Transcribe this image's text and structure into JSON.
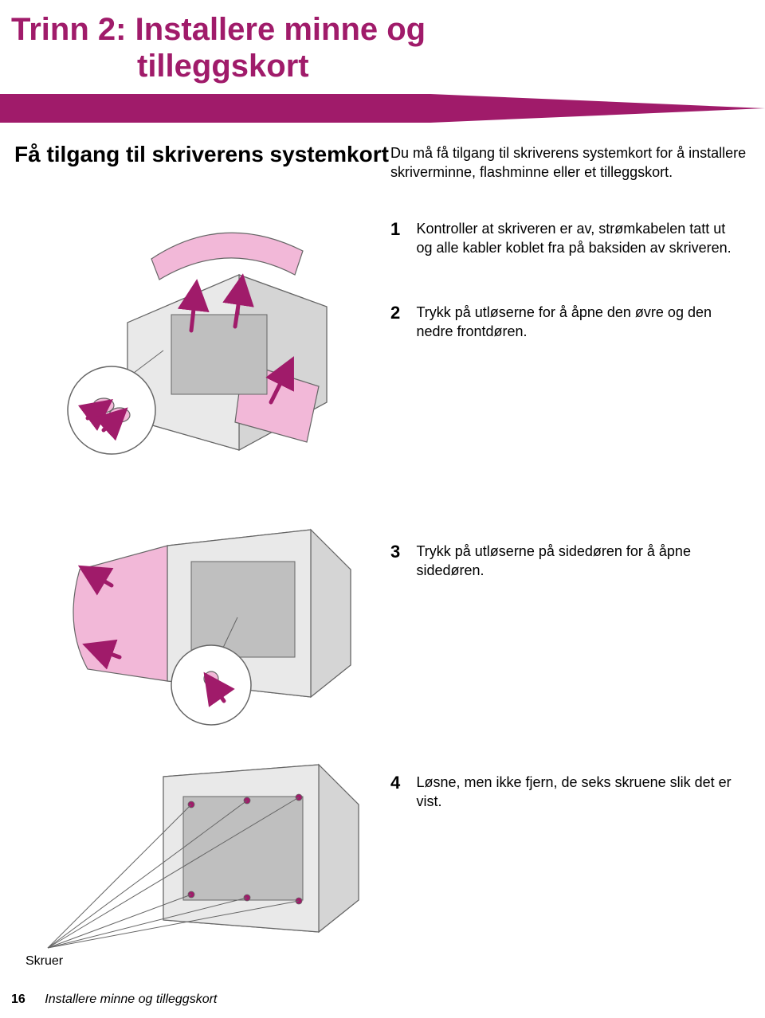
{
  "colors": {
    "heading": "#a01b6a",
    "banner_fill": "#a01b6a",
    "text": "#000000",
    "illus_stroke": "#666666",
    "illus_light_fill": "#e9e9e9",
    "illus_pink": "#f2b8d8",
    "arrow_fill": "#a01b6a"
  },
  "title": {
    "step": "Trinn 2:",
    "line1": "Installere minne og",
    "line2": "tilleggskort"
  },
  "section_heading": "Få tilgang til skriverens systemkort",
  "intro": "Du må få tilgang til skriverens systemkort for å installere skriverminne, flashminne eller et tilleggskort.",
  "steps": [
    {
      "num": "1",
      "text": "Kontroller at skriveren er av, strømkabelen tatt ut og alle kabler koblet fra på baksiden av skriveren."
    },
    {
      "num": "2",
      "text": "Trykk på utløserne for å åpne den øvre og den nedre frontdøren."
    },
    {
      "num": "3",
      "text": "Trykk på utløserne på sidedøren for å åpne sidedøren."
    },
    {
      "num": "4",
      "text": "Løsne, men ikke fjern, de seks skruene slik det er vist."
    }
  ],
  "skruer_label": "Skruer",
  "footer": {
    "page_num": "16",
    "text": "Installere minne og tilleggskort"
  }
}
